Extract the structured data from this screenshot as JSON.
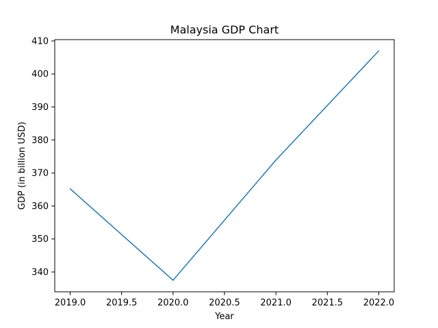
{
  "chart_data": {
    "type": "line",
    "title": "Malaysia GDP Chart",
    "xlabel": "Year",
    "ylabel": "GDP (in billion USD)",
    "xlim": [
      2018.85,
      2022.15
    ],
    "ylim": [
      334.0,
      410.4
    ],
    "grid": false,
    "x": [
      2019.0,
      2020.0,
      2021.0,
      2022.0
    ],
    "series": [
      {
        "values": [
          365.2,
          337.5,
          373.9,
          407.0
        ],
        "color": "#1f77b4"
      }
    ],
    "xticks": [
      2019.0,
      2019.5,
      2020.0,
      2020.5,
      2021.0,
      2021.5,
      2022.0
    ],
    "xtick_labels": [
      "2019.0",
      "2019.5",
      "2020.0",
      "2020.5",
      "2021.0",
      "2021.5",
      "2022.0"
    ],
    "yticks": [
      340,
      350,
      360,
      370,
      380,
      390,
      400,
      410
    ],
    "ytick_labels": [
      "340",
      "350",
      "360",
      "370",
      "380",
      "390",
      "400",
      "410"
    ]
  }
}
